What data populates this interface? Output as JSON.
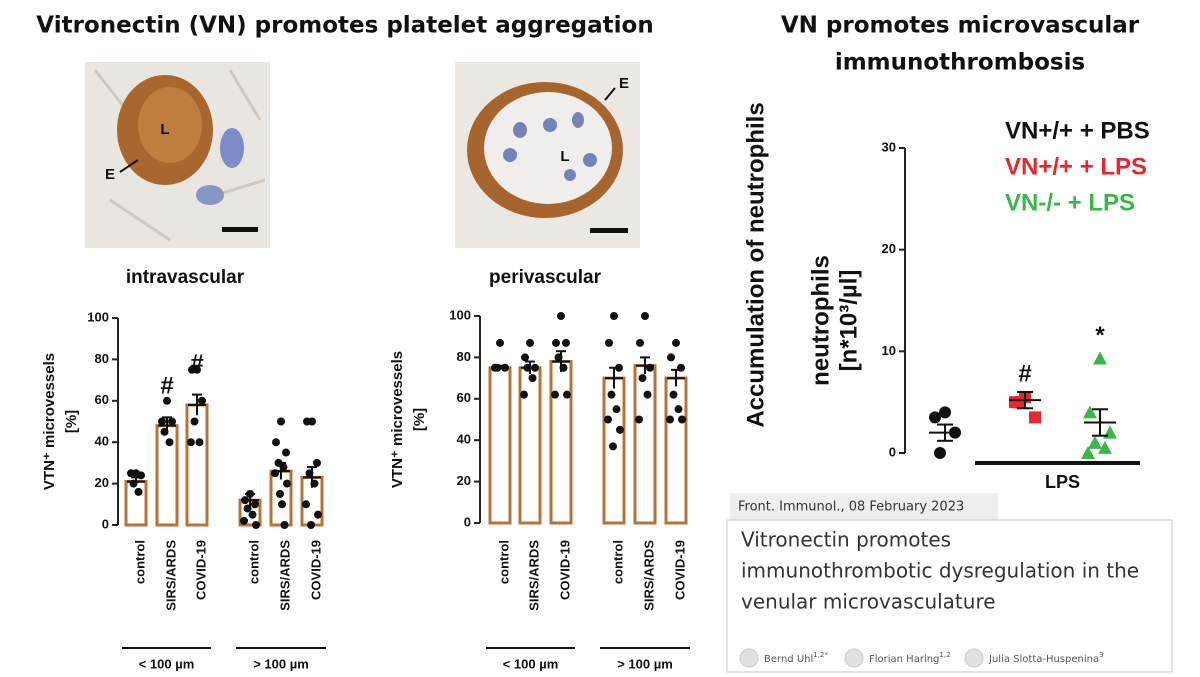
{
  "title": "Vitronectin (VN) promotes platelet aggregation",
  "title2": [
    "VN promotes microvascular",
    "immunothrombosis"
  ],
  "images": [
    {
      "labels": [
        "L",
        "E"
      ],
      "caption": "intravascular"
    },
    {
      "labels": [
        "E",
        "L"
      ],
      "caption": "perivascular"
    }
  ],
  "chart_data": [
    {
      "type": "bar",
      "ylabel": [
        "VTN⁺ microvessels",
        "[%]"
      ],
      "categories": [
        "control",
        "SIRS/ARDS",
        "COVID-19",
        "control",
        "SIRS/ARDS",
        "COVID-19"
      ],
      "groups": [
        "< 100 µm",
        "> 100 µm"
      ],
      "values": [
        21,
        48,
        58,
        12,
        26,
        23
      ],
      "errors": [
        2,
        4,
        5,
        3,
        4,
        5
      ],
      "annotations": [
        null,
        "#",
        "#",
        null,
        null,
        null
      ],
      "points": [
        [
          25,
          25,
          24,
          20,
          16
        ],
        [
          60,
          50,
          50,
          45,
          40
        ],
        [
          75,
          75,
          60,
          50,
          40,
          40
        ],
        [
          15,
          12,
          10,
          8,
          5,
          2,
          0
        ],
        [
          50,
          40,
          35,
          30,
          28,
          25,
          20,
          15,
          10,
          0
        ],
        [
          50,
          50,
          30,
          25,
          20,
          10,
          5,
          0
        ]
      ],
      "color": "#b5733a",
      "ylim": [
        0,
        100
      ],
      "yticks": [
        0,
        20,
        40,
        60,
        80,
        100
      ]
    },
    {
      "type": "bar",
      "ylabel": [
        "VTN⁺ microvessels",
        "[%]"
      ],
      "categories": [
        "control",
        "SIRS/ARDS",
        "COVID-19",
        "control",
        "SIRS/ARDS",
        "COVID-19"
      ],
      "groups": [
        "< 100 µm",
        "> 100 µm"
      ],
      "values": [
        75,
        75,
        78,
        70,
        76,
        70
      ],
      "errors": [
        1,
        3,
        5,
        5,
        4,
        4
      ],
      "annotations": [
        null,
        null,
        null,
        null,
        null,
        null
      ],
      "points": [
        [
          87,
          75,
          75,
          75
        ],
        [
          87,
          80,
          75,
          75,
          70,
          62
        ],
        [
          100,
          87,
          87,
          80,
          75,
          62,
          62
        ],
        [
          100,
          87,
          75,
          62,
          55,
          50,
          45,
          37
        ],
        [
          100,
          87,
          75,
          70,
          62,
          50
        ],
        [
          87,
          80,
          75,
          62,
          55,
          50,
          50
        ]
      ],
      "color": "#b5733a",
      "ylim": [
        0,
        100
      ],
      "yticks": [
        0,
        20,
        40,
        60,
        80,
        100
      ]
    },
    {
      "type": "dot",
      "ylabel_outer": "Accumulation of neutrophils",
      "ylabel": [
        "neutrophils",
        "[n*10³/µl]"
      ],
      "bracket_label": "LPS",
      "series": [
        {
          "name": "VN+/+ + PBS",
          "color": "#111111",
          "value": 2,
          "error": 0.8,
          "annotation": null,
          "points": [
            4,
            3.5,
            2,
            0
          ]
        },
        {
          "name": "VN+/+ + LPS",
          "color": "#e8262b",
          "value": 5.2,
          "error": 0.8,
          "annotation": "#",
          "points": [
            5.5,
            5,
            3.5,
            5
          ]
        },
        {
          "name": "VN-/- + LPS",
          "color": "#3cb54a",
          "value": 3,
          "error": 1.3,
          "annotation": "*",
          "points": [
            9.3,
            4,
            2,
            1,
            0.5,
            0
          ]
        }
      ],
      "ylim": [
        0,
        30
      ],
      "yticks": [
        0,
        10,
        20,
        30
      ]
    }
  ],
  "article": {
    "source": "Front. Immunol., 08 February 2023",
    "title": [
      "Vitronectin promotes",
      "immunothrombotic dysregulation in the",
      "venular microvasculature"
    ],
    "authors": [
      {
        "name": "Bernd Uhl",
        "aff": "1,2*"
      },
      {
        "name": "Florian Haring",
        "aff": "1,2"
      },
      {
        "name": "Julia Slotta-Huspenina",
        "aff": "3"
      }
    ]
  }
}
